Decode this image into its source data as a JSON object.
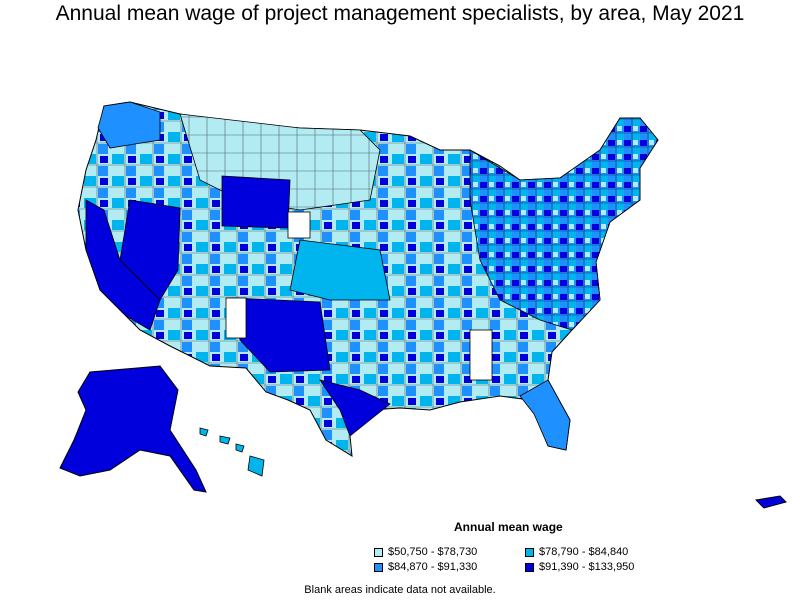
{
  "title": "Annual mean wage of project management specialists, by area, May 2021",
  "legend": {
    "title": "Annual mean wage",
    "items": [
      {
        "label": "$50,750 - $78,730",
        "color": "#b2ebf2"
      },
      {
        "label": "$78,790 - $84,840",
        "color": "#00b4ee"
      },
      {
        "label": "$84,870 - $91,330",
        "color": "#1e90ff"
      },
      {
        "label": "$91,390 - $133,950",
        "color": "#0000dd"
      }
    ]
  },
  "note": "Blank areas indicate data not available."
}
